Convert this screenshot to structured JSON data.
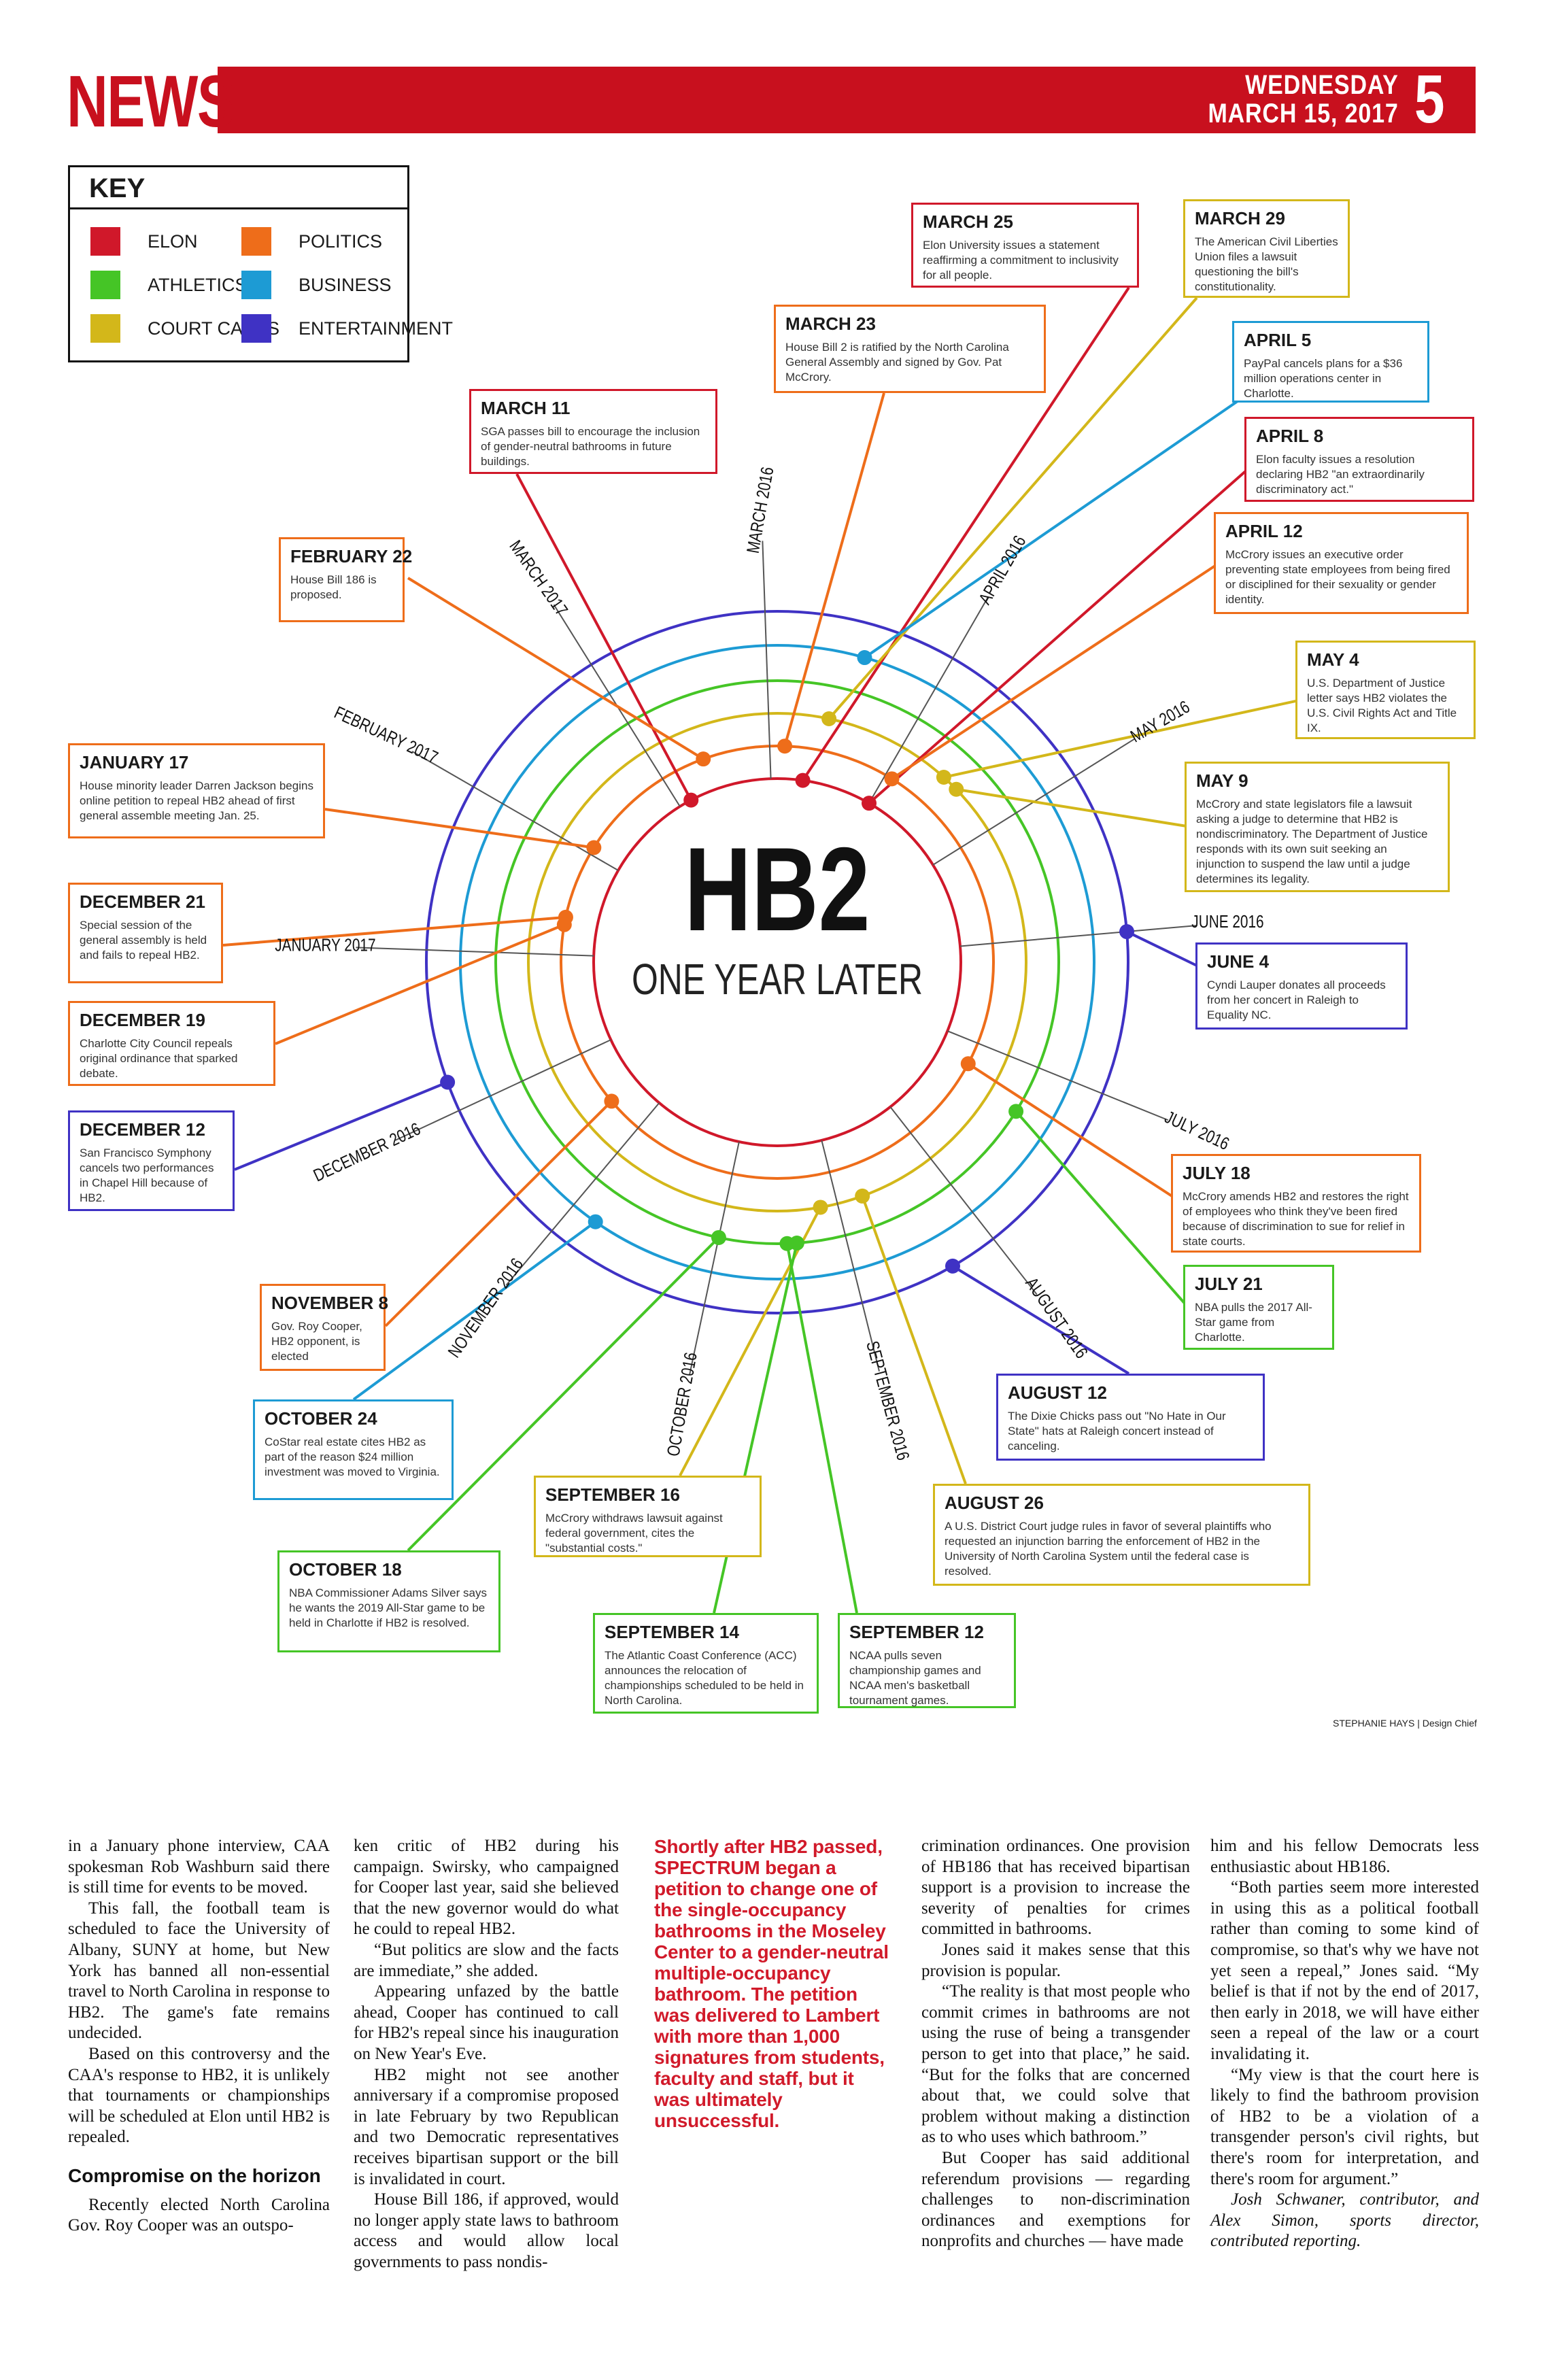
{
  "header": {
    "section": "NEWS",
    "day": "WEDNESDAY",
    "date": "MARCH 15, 2017",
    "page_number": "5"
  },
  "key": {
    "title": "KEY",
    "items": [
      {
        "label": "ELON",
        "color": "#d0182a"
      },
      {
        "label": "POLITICS",
        "color": "#ee6d1a"
      },
      {
        "label": "ATHLETICS",
        "color": "#45c526"
      },
      {
        "label": "BUSINESS",
        "color": "#1d9bd4"
      },
      {
        "label": "COURT CASES",
        "color": "#d3b71a"
      },
      {
        "label": "ENTERTAINMENT",
        "color": "#3f32c4"
      }
    ]
  },
  "graphic": {
    "title": "HB2",
    "subtitle": "ONE YEAR LATER",
    "months": [
      "MARCH 2016",
      "APRIL 2016",
      "MAY 2016",
      "JUNE 2016",
      "JULY 2016",
      "AUGUST 2016",
      "SEPTEMBER 2016",
      "OCTOBER 2016",
      "NOVEMBER 2016",
      "DECEMBER 2016",
      "JANUARY 2017",
      "FEBRUARY 2017",
      "MARCH 2017"
    ],
    "credit": "STEPHANIE HAYS | Design Chief"
  },
  "events": [
    {
      "date": "MARCH 25",
      "text": "Elon University issues a statement reaffirming a commitment to inclusivity for all people.",
      "category": "ELON"
    },
    {
      "date": "MARCH 29",
      "text": "The American Civil Liberties Union files a lawsuit questioning the bill's constitutionality.",
      "category": "COURT CASES"
    },
    {
      "date": "MARCH 23",
      "text": "House Bill 2 is ratified by the North Carolina General Assembly and signed by Gov. Pat McCrory.",
      "category": "POLITICS"
    },
    {
      "date": "APRIL 5",
      "text": "PayPal cancels plans for a $36 million operations center in Charlotte.",
      "category": "BUSINESS"
    },
    {
      "date": "MARCH 11",
      "text": "SGA passes bill to encourage the inclusion of gender-neutral bathrooms in future buildings.",
      "category": "ELON"
    },
    {
      "date": "APRIL 8",
      "text": "Elon faculty issues a resolution declaring HB2 \"an extraordinarily discriminatory act.\"",
      "category": "ELON"
    },
    {
      "date": "APRIL 12",
      "text": "McCrory issues an executive order preventing state employees from being fired or disciplined for their sexuality or gender identity.",
      "category": "POLITICS"
    },
    {
      "date": "FEBRUARY 22",
      "text": "House Bill 186 is proposed.",
      "category": "POLITICS"
    },
    {
      "date": "MAY 4",
      "text": "U.S. Department of Justice letter says HB2 violates the U.S. Civil Rights Act and Title IX.",
      "category": "COURT CASES"
    },
    {
      "date": "JANUARY 17",
      "text": "House minority leader Darren Jackson begins online petition to repeal HB2 ahead of first general assemble meeting Jan. 25.",
      "category": "POLITICS"
    },
    {
      "date": "MAY 9",
      "text": "McCrory and state legislators file a lawsuit asking a judge to determine that HB2 is nondiscriminatory. The Department of Justice responds with its own suit seeking an injunction to suspend the law until a judge determines its legality.",
      "category": "COURT CASES"
    },
    {
      "date": "DECEMBER 21",
      "text": "Special session of the general assembly is held and fails to repeal HB2.",
      "category": "POLITICS"
    },
    {
      "date": "JUNE 4",
      "text": "Cyndi Lauper donates all proceeds from her concert in Raleigh to Equality NC.",
      "category": "ENTERTAINMENT"
    },
    {
      "date": "DECEMBER 19",
      "text": "Charlotte City Council repeals original ordinance that sparked debate.",
      "category": "POLITICS"
    },
    {
      "date": "DECEMBER 12",
      "text": "San Francisco Symphony cancels two performances in Chapel Hill because of HB2.",
      "category": "ENTERTAINMENT"
    },
    {
      "date": "JULY 18",
      "text": "McCrory amends HB2 and restores the right of employees who think they've been fired because of discrimination to sue for relief in state courts.",
      "category": "POLITICS"
    },
    {
      "date": "JULY 21",
      "text": "NBA pulls the 2017 All-Star game from Charlotte.",
      "category": "ATHLETICS"
    },
    {
      "date": "NOVEMBER 8",
      "text": "Gov. Roy Cooper, HB2 opponent, is elected",
      "category": "POLITICS"
    },
    {
      "date": "AUGUST 12",
      "text": "The Dixie Chicks pass out \"No Hate in Our State\" hats at Raleigh concert instead of canceling.",
      "category": "ENTERTAINMENT"
    },
    {
      "date": "OCTOBER 24",
      "text": "CoStar real estate cites HB2 as part of the reason $24 million investment was moved to Virginia.",
      "category": "BUSINESS"
    },
    {
      "date": "SEPTEMBER 16",
      "text": "McCrory withdraws lawsuit against federal government, cites the \"substantial costs.\"",
      "category": "COURT CASES"
    },
    {
      "date": "AUGUST 26",
      "text": "A U.S. District Court judge rules in favor of several plaintiffs who requested an injunction barring the enforcement of HB2 in the University of North Carolina System until the federal case is resolved.",
      "category": "COURT CASES"
    },
    {
      "date": "OCTOBER 18",
      "text": "NBA Commissioner Adams Silver says he wants the 2019 All-Star game to be held in Charlotte if HB2 is resolved.",
      "category": "ATHLETICS"
    },
    {
      "date": "SEPTEMBER 14",
      "text": "The Atlantic Coast Conference (ACC) announces the relocation of championships scheduled to be held in North Carolina.",
      "category": "ATHLETICS"
    },
    {
      "date": "SEPTEMBER 12",
      "text": "NCAA pulls seven championship games and NCAA men's basketball tournament games.",
      "category": "ATHLETICS"
    }
  ],
  "article": {
    "col1": {
      "p1": "in a January phone interview, CAA spokesman Rob Washburn said there is still time for events to be moved.",
      "p2": "This fall, the football team is scheduled to face the University of Albany, SUNY at home, but New York has banned all non-essential travel to North Carolina in response to HB2. The game's fate remains undecided.",
      "p3": "Based on this controversy and the CAA's response to HB2, it is unlikely that tournaments or championships will be scheduled at Elon until HB2 is repealed.",
      "subhead": "Compromise on the horizon",
      "p4": "Recently elected North Carolina Gov. Roy Cooper was an outspo-"
    },
    "col2": {
      "p1": "ken critic of HB2 during his campaign. Swirsky, who campaigned for Cooper last year, said she believed that the new governor would do what he could to repeal HB2.",
      "p2": "“But politics are slow and the facts are immediate,” she added.",
      "p3": "Appearing unfazed by the battle ahead, Cooper has continued to call for HB2's repeal since his inauguration on New Year's Eve.",
      "p4": "HB2 might not see another anniversary if a compromise proposed in late February by two Republican and two Democratic representatives receives bipartisan support or the bill is invalidated in court.",
      "p5": "House Bill 186, if approved, would no longer apply state laws to bathroom access and would allow local governments to pass nondis-"
    },
    "pull_quote": "Shortly after HB2 passed, SPECTRUM began a petition to change one of the single-occupancy bathrooms in the Moseley Center to a gender-neutral multiple-occupancy bathroom. The petition was delivered to Lambert with more than 1,000 signatures from students, faculty and staff, but it was ultimately unsuccessful.",
    "col3": {
      "p1": "crimination ordinances. One provision of HB186 that has received bipartisan support is a provision to increase the severity of penalties for crimes committed in bathrooms.",
      "p2": "Jones said it makes sense that this provision is popular.",
      "p3": "“The reality is that most people who commit crimes in bathrooms are not using the ruse of being a transgender person to get into that place,” he said. “But for the folks that are concerned about that, we could solve that problem without making a distinction as to who uses which bathroom.”",
      "p4": "But Cooper has said additional referendum provisions — regarding challenges to non-discrimination ordinances and exemptions for nonprofits and churches — have made"
    },
    "col4": {
      "p1": "him and his fellow Democrats less enthusiastic about HB186.",
      "p2": "“Both parties seem more interested in using this as a political football rather than coming to some kind of compromise, so that's why we have not yet seen a repeal,” Jones said. “My belief is that if not by the end of 2017, then early in 2018, we will have either seen a repeal of the law or a court invalidating it.",
      "p3": "“My view is that the court here is likely to find the bathroom provision of HB2 to be a violation of a transgender person's civil rights, but there's room for interpretation, and there's room for argument.”",
      "p4": "Josh Schwaner, contributor, and Alex Simon, sports director, contributed reporting."
    }
  }
}
